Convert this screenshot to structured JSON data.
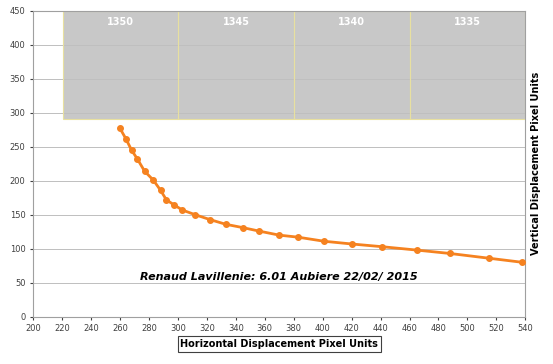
{
  "chart_data": {
    "type": "line",
    "title": "Renaud Lavillenie: 6.01 Aubiere 22/02/ 2015",
    "x_label": "Horizontal Displacement Pixel Units",
    "y_label": "Vertical Displacement Pixel Units",
    "annotations": [
      "1350",
      "1345",
      "1340",
      "1335"
    ],
    "x": [
      260,
      264,
      268,
      272,
      277,
      283,
      288,
      292,
      297,
      303,
      312,
      322,
      333,
      345,
      356,
      370,
      383,
      401,
      420,
      441,
      465,
      488,
      515,
      538
    ],
    "values": [
      277,
      262,
      245,
      232,
      214,
      201,
      186,
      172,
      165,
      157,
      150,
      143,
      136,
      131,
      126,
      120,
      117,
      111,
      107,
      103,
      98,
      93,
      86,
      80
    ],
    "color": "#f58220",
    "marker": "o",
    "line_style": "solid",
    "xlim": [
      200,
      540
    ],
    "xticks": [
      200,
      220,
      240,
      260,
      280,
      300,
      320,
      340,
      360,
      380,
      400,
      420,
      440,
      460,
      480,
      500,
      520,
      540
    ],
    "ylim": [
      0,
      450
    ],
    "yticks": [
      0,
      50,
      100,
      150,
      200,
      250,
      300,
      350,
      400,
      450
    ],
    "grid": "y"
  }
}
